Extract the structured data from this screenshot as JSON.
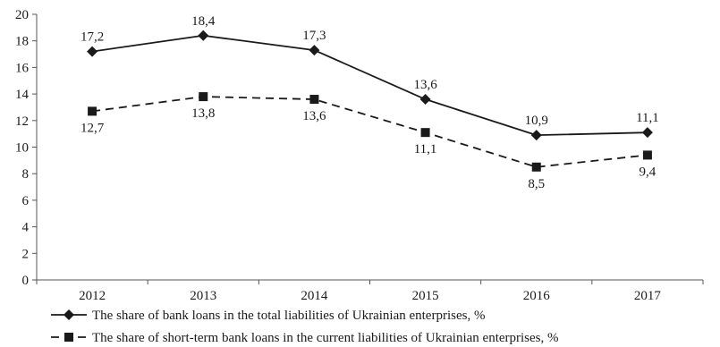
{
  "chart_data": {
    "type": "line",
    "categories": [
      "2012",
      "2013",
      "2014",
      "2015",
      "2016",
      "2017"
    ],
    "ylim": [
      0,
      20
    ],
    "ytick_step": 2,
    "grid": false,
    "legend_placement": "bottom",
    "series": [
      {
        "name": "The share of bank loans in the total liabilities of Ukrainian enterprises, %",
        "values": [
          17.2,
          18.4,
          17.3,
          13.6,
          10.9,
          11.1
        ],
        "labels": [
          "17,2",
          "18,4",
          "17,3",
          "13,6",
          "10,9",
          "11,1"
        ],
        "line_style": "solid",
        "marker": "diamond",
        "color": "#1a1a1a"
      },
      {
        "name": "The share of short-term bank loans in the current liabilities of Ukrainian enterprises, %",
        "values": [
          12.7,
          13.8,
          13.6,
          11.1,
          8.5,
          9.4
        ],
        "labels": [
          "12,7",
          "13,8",
          "13,6",
          "11,1",
          "8,5",
          "9,4"
        ],
        "line_style": "dashed",
        "marker": "square",
        "color": "#1a1a1a"
      }
    ]
  }
}
